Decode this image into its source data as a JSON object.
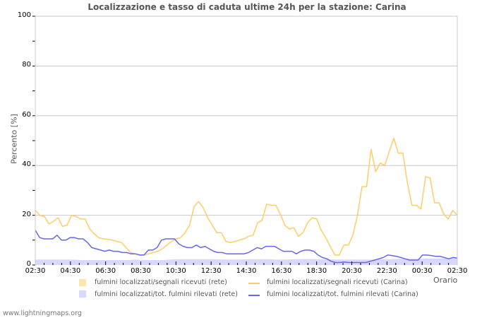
{
  "title": "Localizzazione e tasso di caduta ultime 24h per la stazione: Carina",
  "footer": "www.lightningmaps.org",
  "chart_data": {
    "type": "line",
    "title": "Localizzazione e tasso di caduta ultime 24h per la stazione: Carina",
    "xlabel": "Orario",
    "ylabel": "Percento   [%]",
    "ylim": [
      0,
      100
    ],
    "yticks": [
      "0",
      "20",
      "40",
      "60",
      "80",
      "100"
    ],
    "xticks": [
      "02:30",
      "04:30",
      "06:30",
      "08:30",
      "10:30",
      "12:30",
      "14:30",
      "16:30",
      "18:30",
      "20:30",
      "22:30",
      "00:30",
      "02:30"
    ],
    "grid": "horizontal",
    "legend_position": "bottom",
    "colors": {
      "rete_segnali": "#ffe4a8",
      "rete_tot": "#d8d8ff",
      "carina_segnali": "#ffcc66",
      "carina_tot": "#6666ee"
    },
    "series": [
      {
        "name": "fulmini localizzati/segnali ricevuti (rete)",
        "kind": "area",
        "values": [
          0.5,
          0.5,
          0.5,
          0.5,
          0.5,
          0.5,
          0.5,
          0.5,
          0.5,
          0.5,
          0.5,
          0.5,
          0.5,
          0.5,
          0.5,
          0.5,
          0.5,
          0.5,
          0.5,
          0.5,
          0.5,
          0.5,
          0.5,
          0.5,
          0.5,
          0.5,
          0.6,
          0.7,
          0.8,
          0.8,
          0.9,
          1,
          1,
          1,
          1,
          1,
          1,
          1,
          1,
          1,
          1,
          1.1,
          1.2,
          1.5,
          1.5,
          1.2,
          1,
          1,
          1,
          1,
          1,
          1,
          1,
          1,
          1,
          0.9,
          0.8,
          0.7,
          0.7,
          0.7,
          0.7,
          0.7,
          0.7,
          0.7,
          0.7,
          0.7,
          0.7,
          0.7,
          0.7,
          0.7,
          0.7,
          0.7,
          0.7
        ]
      },
      {
        "name": "fulmini localizzati/tot. fulmini rilevati (rete)",
        "kind": "area",
        "values": [
          2.2,
          2.2,
          2.2,
          2.2,
          2.2,
          2.2,
          2.2,
          2.1,
          2,
          2,
          2,
          2,
          2,
          2,
          2,
          2,
          2,
          2.2,
          2,
          2,
          2,
          2,
          2,
          2.2,
          2.3,
          2.3,
          2.3,
          2.3,
          2.3,
          2.3,
          2.3,
          2.3,
          2.2,
          2.2,
          2.2,
          2.2,
          2.3,
          2.3,
          2.3,
          2.3,
          2.3,
          2.2,
          2.2,
          2.2,
          2.3,
          2.4,
          2.4,
          2.4,
          2.4,
          2.3,
          2.3,
          2.2,
          2.2,
          2.2,
          2.2,
          2.2,
          2.2,
          2.2,
          2.2,
          2.3,
          2.3,
          2.4,
          2.5,
          2.5,
          2.5,
          2.5,
          2.5,
          2.6,
          2.6,
          2.6,
          2.6,
          2.6,
          2.6
        ]
      },
      {
        "name": "fulmini localizzati/segnali ricevuti (Carina)",
        "kind": "line",
        "values": [
          22,
          20,
          19.5,
          16.5,
          17.5,
          19,
          15.5,
          16,
          20,
          19.5,
          18.5,
          18.5,
          14.5,
          12.5,
          11,
          10.5,
          10.3,
          10,
          9.5,
          9,
          7,
          5,
          4.5,
          4,
          4,
          4.5,
          5,
          5.5,
          6.5,
          8,
          9.5,
          10.5,
          11,
          13,
          16,
          23.5,
          25.5,
          23,
          19,
          16,
          13,
          13,
          9.5,
          9,
          9.5,
          10,
          10.5,
          11.5,
          12,
          17,
          18,
          24.5,
          24,
          24,
          20.5,
          16,
          14.5,
          15,
          11.5,
          13,
          17,
          19,
          18.5,
          14,
          11,
          7.5,
          4,
          4,
          8,
          8,
          12,
          20,
          31.5,
          31.5,
          46.5,
          37.5,
          41,
          40,
          45.5,
          51,
          45,
          45,
          33,
          24,
          24,
          22.5,
          35.5,
          35,
          25,
          25,
          20.5,
          18.5,
          22,
          20
        ]
      },
      {
        "name": "fulmini localizzati/tot. fulmini rilevati (Carina)",
        "kind": "line",
        "values": [
          14,
          11,
          10.5,
          10.5,
          10.5,
          12,
          10,
          10,
          11,
          11,
          10.5,
          10.5,
          9,
          7,
          6.5,
          6,
          5.5,
          6,
          5.5,
          5.5,
          5,
          5,
          4.5,
          4.5,
          4,
          4,
          6,
          6,
          7,
          10,
          10.5,
          10.5,
          10.5,
          8.5,
          7.5,
          7,
          7,
          8,
          7,
          7.5,
          6.5,
          5.5,
          5,
          5,
          4.5,
          4.5,
          4.5,
          4.5,
          4.5,
          5,
          6,
          7,
          6.5,
          7.5,
          7.5,
          7.5,
          6.5,
          5.5,
          5.5,
          5.5,
          4.5,
          5.5,
          6,
          6,
          5.5,
          4,
          3,
          2.5,
          1.5,
          1,
          1,
          1.2,
          1,
          1,
          1,
          1,
          1,
          1.5,
          2,
          2.5,
          3,
          4,
          3.8,
          3.5,
          3,
          2.5,
          2,
          2,
          2,
          4,
          4,
          3.8,
          3.5,
          3.5,
          3,
          2.5,
          3,
          2.8
        ]
      }
    ]
  },
  "legend": {
    "items": [
      {
        "label": "fulmini localizzati/segnali ricevuti (rete)",
        "type": "box",
        "color": "#ffe4a8"
      },
      {
        "label": "fulmini localizzati/segnali ricevuti (Carina)",
        "type": "line",
        "color": "#ffcc66"
      },
      {
        "label": "fulmini localizzati/tot. fulmini rilevati (rete)",
        "type": "box",
        "color": "#d8d8ff"
      },
      {
        "label": "fulmini localizzati/tot. fulmini rilevati (Carina)",
        "type": "line",
        "color": "#6666ee"
      }
    ]
  }
}
